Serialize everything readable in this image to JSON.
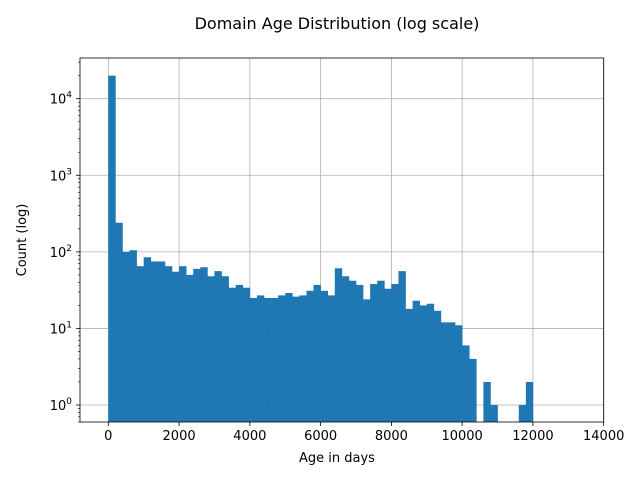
{
  "chart_data": {
    "type": "bar",
    "subtype": "histogram",
    "title": "Domain Age Distribution (log scale)",
    "xlabel": "Age in days",
    "ylabel": "Count (log)",
    "x_scale": "linear",
    "y_scale": "log",
    "xlim": [
      -800,
      14000
    ],
    "ylim": [
      0.6,
      34000
    ],
    "grid": true,
    "bar_color": "#1f77b4",
    "x_ticks": [
      0,
      2000,
      4000,
      6000,
      8000,
      10000,
      12000,
      14000
    ],
    "x_tick_labels": [
      "0",
      "2000",
      "4000",
      "6000",
      "8000",
      "10000",
      "12000",
      "14000"
    ],
    "y_ticks": [
      1,
      10,
      100,
      1000,
      10000
    ],
    "y_tick_labels": [
      {
        "base": "10",
        "exp": "0"
      },
      {
        "base": "10",
        "exp": "1"
      },
      {
        "base": "10",
        "exp": "2"
      },
      {
        "base": "10",
        "exp": "3"
      },
      {
        "base": "10",
        "exp": "4"
      }
    ],
    "bin_start": 0,
    "bin_width": 200,
    "counts": [
      20000,
      240,
      100,
      105,
      65,
      85,
      75,
      75,
      65,
      55,
      65,
      50,
      60,
      63,
      48,
      56,
      48,
      34,
      37,
      34,
      25,
      27,
      25,
      25,
      27,
      29,
      26,
      27,
      31,
      37,
      31,
      27,
      61,
      48,
      42,
      37,
      24,
      38,
      42,
      33,
      38,
      56,
      18,
      23,
      20,
      21,
      17,
      12,
      12,
      11,
      6,
      4,
      0,
      2,
      1,
      0,
      0,
      0,
      1,
      2
    ]
  }
}
